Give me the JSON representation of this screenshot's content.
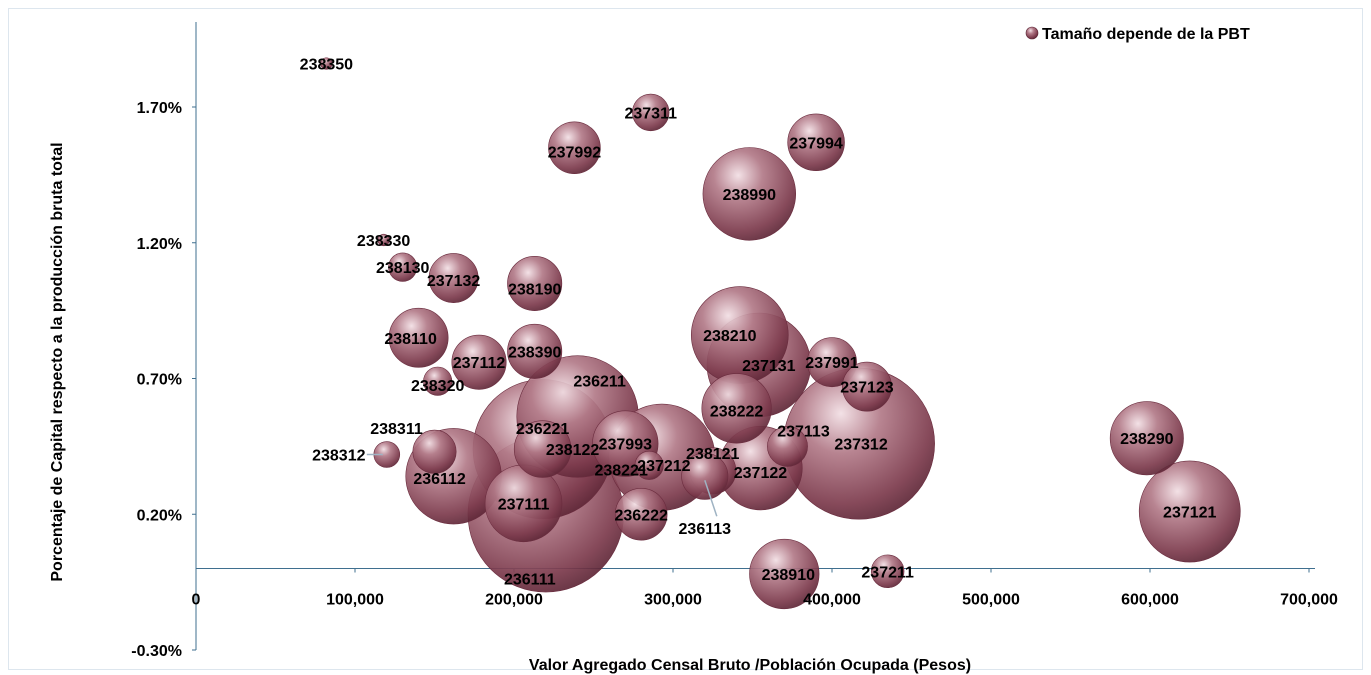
{
  "chart_data": {
    "type": "scatter",
    "subtype": "bubble",
    "title": "",
    "xlabel": "Valor Agregado Censal Bruto /Población Ocupada (Pesos)",
    "ylabel": "Porcentaje de Capital respecto a la producción bruta total",
    "legend": {
      "label": "Tamaño depende de la PBT",
      "placement": "top-right"
    },
    "xlim": [
      0,
      700000
    ],
    "ylim": [
      -0.3,
      1.95
    ],
    "x_ticks": [
      0,
      100000,
      200000,
      300000,
      400000,
      500000,
      600000,
      700000
    ],
    "x_tick_labels": [
      "0",
      "100,000",
      "200,000",
      "300,000",
      "400,000",
      "500,000",
      "600,000",
      "700,000"
    ],
    "y_ticks": [
      1.7,
      1.2,
      0.7,
      0.2,
      -0.3
    ],
    "y_tick_labels": [
      "1.70%",
      "1.20%",
      "0.70%",
      "0.20%",
      "-0.30%"
    ],
    "grid": false,
    "bubble_color": "#8c4a5c",
    "points": [
      {
        "label": "238350",
        "x": 82000,
        "y": 1.86,
        "size": 0.5
      },
      {
        "label": "237311",
        "x": 286000,
        "y": 1.68,
        "size": 5
      },
      {
        "label": "237992",
        "x": 238000,
        "y": 1.55,
        "size": 10
      },
      {
        "label": "237994",
        "x": 390000,
        "y": 1.57,
        "size": 12
      },
      {
        "label": "238990",
        "x": 348000,
        "y": 1.38,
        "size": 32
      },
      {
        "label": "238330",
        "x": 118000,
        "y": 1.21,
        "size": 0.5
      },
      {
        "label": "238130",
        "x": 130000,
        "y": 1.11,
        "size": 3
      },
      {
        "label": "237132",
        "x": 162000,
        "y": 1.07,
        "size": 9
      },
      {
        "label": "238190",
        "x": 213000,
        "y": 1.05,
        "size": 11
      },
      {
        "label": "238110",
        "x": 140000,
        "y": 0.85,
        "size": 13
      },
      {
        "label": "238390",
        "x": 213000,
        "y": 0.8,
        "size": 11
      },
      {
        "label": "237112",
        "x": 178000,
        "y": 0.76,
        "size": 11
      },
      {
        "label": "238320",
        "x": 152000,
        "y": 0.69,
        "size": 3
      },
      {
        "label": "238210",
        "x": 342000,
        "y": 0.86,
        "size": 35
      },
      {
        "label": "237131",
        "x": 354000,
        "y": 0.75,
        "size": 40
      },
      {
        "label": "237991",
        "x": 400000,
        "y": 0.76,
        "size": 9
      },
      {
        "label": "237123",
        "x": 422000,
        "y": 0.67,
        "size": 9
      },
      {
        "label": "236211",
        "x": 240000,
        "y": 0.56,
        "size": 55
      },
      {
        "label": "238222",
        "x": 340000,
        "y": 0.59,
        "size": 18
      },
      {
        "label": "237113",
        "x": 372000,
        "y": 0.45,
        "size": 6
      },
      {
        "label": "237312",
        "x": 417000,
        "y": 0.46,
        "size": 85
      },
      {
        "label": "238290",
        "x": 598000,
        "y": 0.48,
        "size": 20
      },
      {
        "label": "236221",
        "x": 218000,
        "y": 0.44,
        "size": 72
      },
      {
        "label": "238122",
        "x": 218000,
        "y": 0.44,
        "size": 12
      },
      {
        "label": "237993",
        "x": 270000,
        "y": 0.46,
        "size": 16
      },
      {
        "label": "238311",
        "x": 150000,
        "y": 0.43,
        "size": 7
      },
      {
        "label": "238312",
        "x": 120000,
        "y": 0.42,
        "size": 2.5
      },
      {
        "label": "237212",
        "x": 293000,
        "y": 0.41,
        "size": 42
      },
      {
        "label": "238121",
        "x": 325000,
        "y": 0.36,
        "size": 8
      },
      {
        "label": "237122",
        "x": 355000,
        "y": 0.37,
        "size": 26
      },
      {
        "label": "238221",
        "x": 285000,
        "y": 0.38,
        "size": 3
      },
      {
        "label": "236112",
        "x": 162000,
        "y": 0.34,
        "size": 34
      },
      {
        "label": "236113",
        "x": 320000,
        "y": 0.34,
        "size": 8
      },
      {
        "label": "237111",
        "x": 206000,
        "y": 0.24,
        "size": 22
      },
      {
        "label": "236111",
        "x": 220000,
        "y": 0.2,
        "size": 90
      },
      {
        "label": "236222",
        "x": 280000,
        "y": 0.2,
        "size": 10
      },
      {
        "label": "237121",
        "x": 625000,
        "y": 0.21,
        "size": 38
      },
      {
        "label": "238910",
        "x": 370000,
        "y": -0.02,
        "size": 18
      },
      {
        "label": "237211",
        "x": 435000,
        "y": -0.01,
        "size": 4
      }
    ]
  }
}
